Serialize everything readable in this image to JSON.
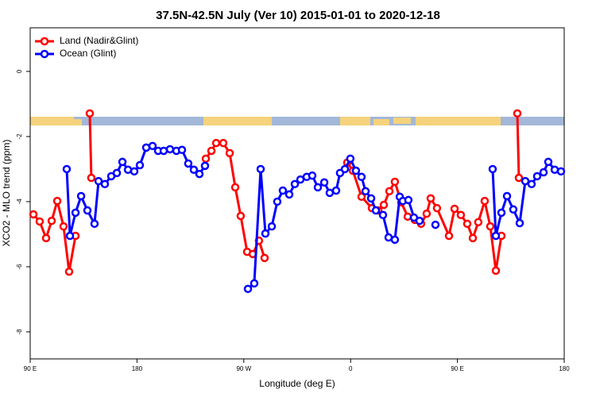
{
  "chart_data": {
    "type": "line",
    "title": "37.5N-42.5N July (Ver 10)   2015-01-01 to 2020-12-18",
    "x_label": "Longitude (deg E)",
    "y_label": "XCO2 - MLO trend (ppm)",
    "xlim": [
      90,
      540
    ],
    "ylim": [
      -8.83,
      1.34
    ],
    "xticks": [
      {
        "value": 90,
        "label": "90 E"
      },
      180,
      {
        "value": 270,
        "label": "90 W"
      },
      {
        "value": 360,
        "label": "0"
      },
      {
        "value": 450,
        "label": "90 E"
      },
      {
        "value": 540,
        "label": "180"
      }
    ],
    "yticks": [
      0,
      -2,
      -4,
      -6,
      -8
    ],
    "legend": "top-left",
    "series": [
      {
        "name": "Land (Nadir&Glint)",
        "color": "#ff0000",
        "x": [
          92.7,
          98.0,
          103.4,
          108.1,
          112.8,
          118.1,
          122.8,
          128.2,
          null,
          140.2,
          141.5,
          null,
          238.0,
          242.7,
          246.7,
          252.7,
          258.1,
          262.8,
          267.4,
          272.8,
          277.5,
          282.8,
          287.5,
          null,
          357.2,
          361.9,
          369.2,
          377.9,
          383.3,
          388.0,
          392.7,
          397.3,
          402.7,
          408.1,
          414.1,
          419.4,
          424.1,
          427.5,
          432.8,
          442.9,
          447.6,
          452.9,
          458.3,
          463.0,
          467.6,
          473.0,
          477.7,
          482.4,
          487.1,
          null,
          500.5,
          501.8
        ],
        "values": [
          -4.39,
          -4.61,
          -5.12,
          -4.59,
          -3.98,
          -4.76,
          -6.15,
          -5.05,
          null,
          -1.29,
          -3.27,
          null,
          -2.68,
          -2.44,
          -2.2,
          -2.2,
          -2.51,
          -3.56,
          -4.44,
          -5.54,
          -5.61,
          -5.2,
          -5.73,
          null,
          -2.8,
          -3.05,
          -3.85,
          -4.2,
          -4.27,
          -4.1,
          -3.68,
          -3.39,
          -4.02,
          -4.46,
          -4.56,
          -4.68,
          -4.37,
          -3.9,
          -4.2,
          -5.05,
          -4.22,
          -4.41,
          -4.68,
          -5.12,
          -4.63,
          -3.98,
          -4.76,
          -6.12,
          -5.05,
          null,
          -1.29,
          -3.27
        ]
      },
      {
        "name": "Ocean (Glint)",
        "color": "#0000ff",
        "x": [
          120.8,
          123.5,
          128.2,
          132.9,
          138.2,
          144.2,
          147.6,
          152.9,
          158.3,
          163.0,
          167.7,
          172.4,
          177.7,
          182.4,
          187.8,
          193.1,
          197.8,
          202.5,
          207.8,
          213.2,
          217.9,
          223.2,
          227.9,
          232.6,
          237.3,
          null,
          273.5,
          278.8,
          284.2,
          288.2,
          293.6,
          298.2,
          302.9,
          308.3,
          313.0,
          317.7,
          323.0,
          327.7,
          332.4,
          337.8,
          342.4,
          347.8,
          351.1,
          355.2,
          359.8,
          364.5,
          369.2,
          372.6,
          377.3,
          381.3,
          387.3,
          392.0,
          397.3,
          401.4,
          404.0,
          408.7,
          413.4,
          418.1,
          null,
          431.5,
          null,
          479.7,
          482.4,
          487.1,
          491.8,
          497.1,
          502.5,
          507.2,
          512.5,
          517.2,
          522.6,
          526.6,
          532.0,
          537.3
        ],
        "values": [
          -3.0,
          -5.05,
          -4.34,
          -3.83,
          -4.27,
          -4.68,
          -3.37,
          -3.46,
          -3.22,
          -3.12,
          -2.78,
          -3.02,
          -3.07,
          -2.88,
          -2.34,
          -2.29,
          -2.44,
          -2.44,
          -2.39,
          -2.44,
          -2.41,
          -2.83,
          -3.02,
          -3.15,
          -2.9,
          null,
          -6.68,
          -6.51,
          -3.0,
          -4.98,
          -4.76,
          -4.0,
          -3.66,
          -3.78,
          -3.46,
          -3.32,
          -3.24,
          -3.2,
          -3.56,
          -3.41,
          -3.73,
          -3.66,
          -3.12,
          -3.0,
          -2.68,
          -3.05,
          -3.24,
          -3.68,
          -3.9,
          -4.27,
          -4.41,
          -5.1,
          -5.17,
          -3.85,
          -3.98,
          -3.95,
          -4.49,
          -4.59,
          null,
          -4.71,
          null,
          -3.0,
          -5.05,
          -4.34,
          -3.83,
          -4.24,
          -4.66,
          -3.37,
          -3.46,
          -3.22,
          -3.1,
          -2.78,
          -3.02,
          -3.07
        ]
      }
    ]
  }
}
